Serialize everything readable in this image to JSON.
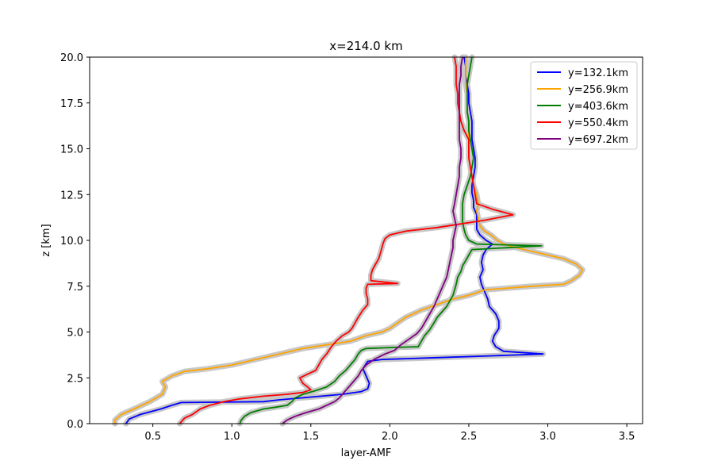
{
  "chart_data": {
    "type": "line",
    "title": "x=214.0 km",
    "xlabel": "layer-AMF",
    "ylabel": "z [km]",
    "xlim": [
      0.1,
      3.6
    ],
    "ylim": [
      0,
      20
    ],
    "xticks": [
      0.5,
      1.0,
      1.5,
      2.0,
      2.5,
      3.0,
      3.5
    ],
    "xtick_labels": [
      "0.5",
      "1.0",
      "1.5",
      "2.0",
      "2.5",
      "3.0",
      "3.5"
    ],
    "yticks": [
      0.0,
      2.5,
      5.0,
      7.5,
      10.0,
      12.5,
      15.0,
      17.5,
      20.0
    ],
    "ytick_labels": [
      "0.0",
      "2.5",
      "5.0",
      "7.5",
      "10.0",
      "12.5",
      "15.0",
      "17.5",
      "20.0"
    ],
    "grid": false,
    "legend_position": "top-right",
    "uncertainty_band_color": "#c8c8c8",
    "series": [
      {
        "name": "y=132.1km",
        "color": "#0000ff",
        "points": [
          [
            0.33,
            0
          ],
          [
            0.35,
            0.25
          ],
          [
            0.42,
            0.5
          ],
          [
            0.55,
            0.8
          ],
          [
            0.62,
            1.0
          ],
          [
            0.68,
            1.15
          ],
          [
            1.2,
            1.2
          ],
          [
            1.3,
            1.3
          ],
          [
            1.5,
            1.45
          ],
          [
            1.7,
            1.6
          ],
          [
            1.82,
            1.75
          ],
          [
            1.86,
            1.9
          ],
          [
            1.87,
            2.2
          ],
          [
            1.85,
            2.6
          ],
          [
            1.83,
            3.0
          ],
          [
            1.86,
            3.4
          ],
          [
            1.95,
            3.5
          ],
          [
            2.3,
            3.6
          ],
          [
            2.65,
            3.7
          ],
          [
            2.97,
            3.8
          ],
          [
            2.72,
            3.95
          ],
          [
            2.67,
            4.2
          ],
          [
            2.65,
            4.5
          ],
          [
            2.66,
            4.8
          ],
          [
            2.69,
            5.2
          ],
          [
            2.69,
            5.6
          ],
          [
            2.67,
            6.0
          ],
          [
            2.63,
            6.4
          ],
          [
            2.62,
            6.8
          ],
          [
            2.6,
            7.2
          ],
          [
            2.58,
            7.6
          ],
          [
            2.57,
            8.0
          ],
          [
            2.59,
            8.4
          ],
          [
            2.58,
            8.8
          ],
          [
            2.59,
            9.2
          ],
          [
            2.61,
            9.5
          ],
          [
            2.65,
            9.8
          ],
          [
            2.61,
            10.0
          ],
          [
            2.57,
            10.3
          ],
          [
            2.55,
            10.6
          ],
          [
            2.55,
            11.0
          ],
          [
            2.55,
            11.4
          ],
          [
            2.53,
            11.8
          ],
          [
            2.53,
            12.2
          ],
          [
            2.52,
            12.6
          ],
          [
            2.52,
            13.0
          ],
          [
            2.53,
            13.5
          ],
          [
            2.54,
            14.0
          ],
          [
            2.54,
            14.5
          ],
          [
            2.53,
            15.0
          ],
          [
            2.52,
            15.5
          ],
          [
            2.52,
            16.0
          ],
          [
            2.52,
            16.5
          ],
          [
            2.51,
            17.0
          ],
          [
            2.5,
            17.5
          ],
          [
            2.5,
            18.0
          ],
          [
            2.49,
            18.5
          ],
          [
            2.48,
            19.0
          ],
          [
            2.48,
            19.5
          ],
          [
            2.47,
            20.0
          ]
        ]
      },
      {
        "name": "y=256.9km",
        "color": "#ffa500",
        "points": [
          [
            0.26,
            0
          ],
          [
            0.26,
            0.2
          ],
          [
            0.3,
            0.5
          ],
          [
            0.38,
            0.8
          ],
          [
            0.48,
            1.2
          ],
          [
            0.56,
            1.6
          ],
          [
            0.58,
            2.0
          ],
          [
            0.56,
            2.3
          ],
          [
            0.62,
            2.6
          ],
          [
            0.7,
            2.85
          ],
          [
            0.85,
            3.0
          ],
          [
            1.0,
            3.2
          ],
          [
            1.15,
            3.5
          ],
          [
            1.3,
            3.8
          ],
          [
            1.45,
            4.1
          ],
          [
            1.6,
            4.3
          ],
          [
            1.75,
            4.5
          ],
          [
            1.85,
            4.8
          ],
          [
            1.95,
            5.0
          ],
          [
            2.0,
            5.2
          ],
          [
            2.05,
            5.5
          ],
          [
            2.1,
            5.8
          ],
          [
            2.2,
            6.2
          ],
          [
            2.3,
            6.5
          ],
          [
            2.4,
            6.8
          ],
          [
            2.5,
            7.0
          ],
          [
            2.6,
            7.3
          ],
          [
            2.9,
            7.5
          ],
          [
            3.1,
            7.6
          ],
          [
            3.15,
            7.8
          ],
          [
            3.2,
            8.1
          ],
          [
            3.22,
            8.4
          ],
          [
            3.18,
            8.7
          ],
          [
            3.1,
            9.0
          ],
          [
            3.0,
            9.2
          ],
          [
            2.9,
            9.4
          ],
          [
            2.8,
            9.6
          ],
          [
            2.72,
            9.8
          ],
          [
            2.68,
            10.0
          ],
          [
            2.64,
            10.3
          ],
          [
            2.6,
            10.5
          ],
          [
            2.57,
            10.8
          ],
          [
            2.56,
            11.2
          ],
          [
            2.55,
            11.6
          ],
          [
            2.56,
            12.0
          ],
          [
            2.55,
            12.5
          ],
          [
            2.53,
            13.0
          ],
          [
            2.52,
            13.5
          ],
          [
            2.51,
            14.0
          ],
          [
            2.5,
            14.5
          ],
          [
            2.5,
            15.0
          ],
          [
            2.5,
            15.5
          ],
          [
            2.5,
            16.0
          ],
          [
            2.5,
            16.5
          ],
          [
            2.49,
            17.0
          ],
          [
            2.49,
            17.5
          ],
          [
            2.49,
            18.0
          ],
          [
            2.48,
            18.5
          ],
          [
            2.48,
            19.0
          ],
          [
            2.48,
            19.5
          ],
          [
            2.48,
            20.0
          ]
        ]
      },
      {
        "name": "y=403.6km",
        "color": "#008000",
        "points": [
          [
            1.05,
            0
          ],
          [
            1.06,
            0.2
          ],
          [
            1.08,
            0.4
          ],
          [
            1.12,
            0.6
          ],
          [
            1.2,
            0.8
          ],
          [
            1.28,
            0.9
          ],
          [
            1.35,
            1.0
          ],
          [
            1.38,
            1.2
          ],
          [
            1.4,
            1.4
          ],
          [
            1.45,
            1.6
          ],
          [
            1.53,
            1.8
          ],
          [
            1.6,
            2.0
          ],
          [
            1.65,
            2.3
          ],
          [
            1.68,
            2.6
          ],
          [
            1.72,
            2.9
          ],
          [
            1.75,
            3.2
          ],
          [
            1.78,
            3.5
          ],
          [
            1.8,
            3.8
          ],
          [
            1.82,
            4.0
          ],
          [
            1.85,
            4.1
          ],
          [
            2.0,
            4.15
          ],
          [
            2.18,
            4.2
          ],
          [
            2.2,
            4.5
          ],
          [
            2.22,
            4.8
          ],
          [
            2.25,
            5.1
          ],
          [
            2.28,
            5.5
          ],
          [
            2.3,
            5.8
          ],
          [
            2.33,
            6.1
          ],
          [
            2.36,
            6.4
          ],
          [
            2.38,
            6.7
          ],
          [
            2.4,
            7.0
          ],
          [
            2.41,
            7.3
          ],
          [
            2.42,
            7.6
          ],
          [
            2.43,
            8.0
          ],
          [
            2.45,
            8.3
          ],
          [
            2.46,
            8.6
          ],
          [
            2.48,
            8.9
          ],
          [
            2.5,
            9.2
          ],
          [
            2.52,
            9.5
          ],
          [
            2.96,
            9.7
          ],
          [
            2.55,
            9.8
          ],
          [
            2.5,
            10.0
          ],
          [
            2.48,
            10.3
          ],
          [
            2.47,
            10.6
          ],
          [
            2.46,
            11.0
          ],
          [
            2.46,
            11.5
          ],
          [
            2.46,
            12.0
          ],
          [
            2.47,
            12.5
          ],
          [
            2.49,
            13.0
          ],
          [
            2.51,
            13.5
          ],
          [
            2.52,
            14.0
          ],
          [
            2.53,
            14.5
          ],
          [
            2.52,
            15.0
          ],
          [
            2.51,
            15.5
          ],
          [
            2.5,
            16.0
          ],
          [
            2.5,
            16.5
          ],
          [
            2.49,
            17.0
          ],
          [
            2.49,
            17.5
          ],
          [
            2.49,
            18.0
          ],
          [
            2.49,
            18.5
          ],
          [
            2.5,
            19.0
          ],
          [
            2.51,
            19.5
          ],
          [
            2.52,
            20.0
          ]
        ]
      },
      {
        "name": "y=550.4km",
        "color": "#ff0000",
        "points": [
          [
            0.67,
            0
          ],
          [
            0.7,
            0.3
          ],
          [
            0.75,
            0.5
          ],
          [
            0.8,
            0.8
          ],
          [
            0.86,
            1.0
          ],
          [
            0.95,
            1.2
          ],
          [
            1.05,
            1.35
          ],
          [
            1.2,
            1.5
          ],
          [
            1.35,
            1.6
          ],
          [
            1.45,
            1.7
          ],
          [
            1.5,
            1.85
          ],
          [
            1.48,
            2.0
          ],
          [
            1.45,
            2.2
          ],
          [
            1.43,
            2.5
          ],
          [
            1.48,
            2.7
          ],
          [
            1.53,
            2.9
          ],
          [
            1.55,
            3.2
          ],
          [
            1.57,
            3.5
          ],
          [
            1.6,
            3.8
          ],
          [
            1.63,
            4.2
          ],
          [
            1.66,
            4.5
          ],
          [
            1.7,
            4.8
          ],
          [
            1.74,
            5.0
          ],
          [
            1.76,
            5.2
          ],
          [
            1.78,
            5.5
          ],
          [
            1.8,
            5.8
          ],
          [
            1.83,
            6.2
          ],
          [
            1.86,
            6.5
          ],
          [
            1.86,
            6.8
          ],
          [
            1.85,
            7.1
          ],
          [
            1.85,
            7.4
          ],
          [
            1.86,
            7.6
          ],
          [
            2.05,
            7.65
          ],
          [
            1.88,
            7.8
          ],
          [
            1.88,
            8.1
          ],
          [
            1.89,
            8.4
          ],
          [
            1.91,
            8.7
          ],
          [
            1.93,
            9.0
          ],
          [
            1.94,
            9.3
          ],
          [
            1.95,
            9.6
          ],
          [
            1.96,
            9.9
          ],
          [
            1.97,
            10.1
          ],
          [
            2.0,
            10.3
          ],
          [
            2.1,
            10.5
          ],
          [
            2.3,
            10.7
          ],
          [
            2.45,
            10.9
          ],
          [
            2.6,
            11.1
          ],
          [
            2.72,
            11.3
          ],
          [
            2.78,
            11.4
          ],
          [
            2.65,
            11.7
          ],
          [
            2.55,
            12.0
          ],
          [
            2.54,
            12.5
          ],
          [
            2.53,
            13.0
          ],
          [
            2.52,
            13.5
          ],
          [
            2.51,
            14.0
          ],
          [
            2.5,
            14.5
          ],
          [
            2.5,
            15.0
          ],
          [
            2.5,
            15.5
          ],
          [
            2.47,
            16.0
          ],
          [
            2.45,
            16.5
          ],
          [
            2.44,
            17.0
          ],
          [
            2.43,
            17.5
          ],
          [
            2.43,
            18.0
          ],
          [
            2.42,
            18.5
          ],
          [
            2.42,
            19.0
          ],
          [
            2.42,
            19.5
          ],
          [
            2.41,
            20.0
          ]
        ]
      },
      {
        "name": "y=697.2km",
        "color": "#800080",
        "points": [
          [
            1.32,
            0
          ],
          [
            1.35,
            0.2
          ],
          [
            1.4,
            0.4
          ],
          [
            1.47,
            0.6
          ],
          [
            1.55,
            0.8
          ],
          [
            1.6,
            1.0
          ],
          [
            1.65,
            1.2
          ],
          [
            1.68,
            1.4
          ],
          [
            1.7,
            1.6
          ],
          [
            1.72,
            1.8
          ],
          [
            1.74,
            2.0
          ],
          [
            1.77,
            2.3
          ],
          [
            1.8,
            2.6
          ],
          [
            1.82,
            2.9
          ],
          [
            1.85,
            3.2
          ],
          [
            1.9,
            3.5
          ],
          [
            1.97,
            3.8
          ],
          [
            2.03,
            4.0
          ],
          [
            2.07,
            4.3
          ],
          [
            2.12,
            4.6
          ],
          [
            2.17,
            4.9
          ],
          [
            2.2,
            5.2
          ],
          [
            2.22,
            5.5
          ],
          [
            2.24,
            5.8
          ],
          [
            2.26,
            6.1
          ],
          [
            2.28,
            6.4
          ],
          [
            2.3,
            6.8
          ],
          [
            2.32,
            7.2
          ],
          [
            2.34,
            7.6
          ],
          [
            2.36,
            8.0
          ],
          [
            2.37,
            8.4
          ],
          [
            2.38,
            8.8
          ],
          [
            2.39,
            9.2
          ],
          [
            2.4,
            9.6
          ],
          [
            2.4,
            10.0
          ],
          [
            2.41,
            10.4
          ],
          [
            2.42,
            10.8
          ],
          [
            2.41,
            11.2
          ],
          [
            2.4,
            11.6
          ],
          [
            2.41,
            12.0
          ],
          [
            2.42,
            12.5
          ],
          [
            2.43,
            13.0
          ],
          [
            2.44,
            13.5
          ],
          [
            2.44,
            14.0
          ],
          [
            2.45,
            14.5
          ],
          [
            2.45,
            15.0
          ],
          [
            2.44,
            15.5
          ],
          [
            2.44,
            16.0
          ],
          [
            2.44,
            16.5
          ],
          [
            2.44,
            17.0
          ],
          [
            2.44,
            17.5
          ],
          [
            2.44,
            18.0
          ],
          [
            2.44,
            18.5
          ],
          [
            2.45,
            19.0
          ],
          [
            2.45,
            19.5
          ],
          [
            2.46,
            20.0
          ]
        ]
      }
    ]
  }
}
